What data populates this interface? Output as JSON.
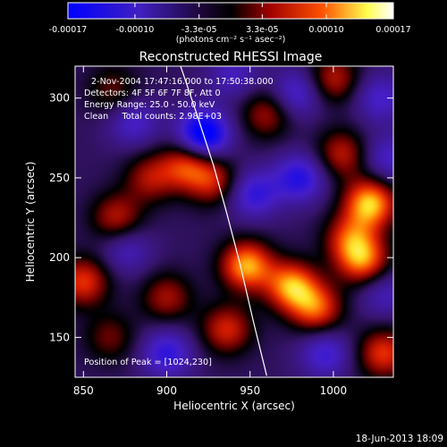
{
  "chart_data": {
    "type": "heatmap",
    "title": "Reconstructed RHESSI Image",
    "xlabel": "Heliocentric X (arcsec)",
    "ylabel": "Heliocentric Y (arcsec)",
    "xlim": [
      845,
      1036
    ],
    "ylim": [
      125,
      320
    ],
    "xticks": [
      850,
      900,
      950,
      1000
    ],
    "yticks": [
      150,
      200,
      250,
      300
    ],
    "x_tick_labels": [
      "850",
      "900",
      "950",
      "1000"
    ],
    "y_tick_labels": [
      "150",
      "200",
      "250",
      "300"
    ],
    "colorbar": {
      "range": [
        -0.00017,
        0.00017
      ],
      "ticks": [
        -0.00017,
        -0.0001,
        -3.3e-05,
        3.3e-05,
        0.0001,
        0.00017
      ],
      "tick_labels": [
        "-0.00017",
        "-0.00010",
        "-3.3e-05",
        "3.3e-05",
        "0.00010",
        "0.00017"
      ],
      "label": "(photons cm⁻² s⁻¹ asec⁻²)",
      "colors": [
        "#0000ff",
        "#3018a8",
        "#000000",
        "#b00000",
        "#ff5000",
        "#ffff60",
        "#ffffff"
      ]
    },
    "annotations": {
      "time": "2-Nov-2004 17:47:16.000 to 17:50:38.000",
      "detectors": "Detectors: 4F 5F 6F 7F 8F, Att 0",
      "energy": "Energy Range: 25.0 - 50.0 keV",
      "clean": "Clean     Total counts: 2.98E+03",
      "peak": "Position of Peak = [1024,230]"
    },
    "limb_curve": {
      "x": [
        908,
        918,
        928,
        936,
        944,
        952,
        960
      ],
      "y": [
        321,
        290,
        258,
        228,
        196,
        160,
        126
      ]
    },
    "sources": [
      {
        "x": 948,
        "y": 195,
        "value": 0.000155
      },
      {
        "x": 975,
        "y": 182,
        "value": 0.00015
      },
      {
        "x": 990,
        "y": 168,
        "value": 0.00012
      },
      {
        "x": 1022,
        "y": 234,
        "value": 0.000165
      },
      {
        "x": 1018,
        "y": 198,
        "value": 0.00013
      },
      {
        "x": 1010,
        "y": 212,
        "value": 0.0001
      },
      {
        "x": 1005,
        "y": 265,
        "value": 9e-05
      },
      {
        "x": 912,
        "y": 258,
        "value": 0.00011
      },
      {
        "x": 928,
        "y": 248,
        "value": 9e-05
      },
      {
        "x": 890,
        "y": 250,
        "value": 8e-05
      },
      {
        "x": 870,
        "y": 225,
        "value": 9e-05
      },
      {
        "x": 850,
        "y": 185,
        "value": 0.00011
      },
      {
        "x": 900,
        "y": 175,
        "value": 8e-05
      },
      {
        "x": 936,
        "y": 155,
        "value": 0.0001
      },
      {
        "x": 1030,
        "y": 140,
        "value": 0.00011
      },
      {
        "x": 960,
        "y": 290,
        "value": 8e-05
      },
      {
        "x": 1000,
        "y": 312,
        "value": 9e-05
      },
      {
        "x": 868,
        "y": 305,
        "value": 6e-05
      },
      {
        "x": 866,
        "y": 150,
        "value": 6e-05
      },
      {
        "x": 922,
        "y": 277,
        "value": -0.00016
      },
      {
        "x": 952,
        "y": 240,
        "value": -9e-05
      },
      {
        "x": 980,
        "y": 250,
        "value": -0.0001
      },
      {
        "x": 978,
        "y": 303,
        "value": -8e-05
      },
      {
        "x": 1028,
        "y": 300,
        "value": -7e-05
      },
      {
        "x": 880,
        "y": 285,
        "value": -7e-05
      },
      {
        "x": 900,
        "y": 140,
        "value": -9e-05
      },
      {
        "x": 995,
        "y": 140,
        "value": -8e-05
      },
      {
        "x": 876,
        "y": 205,
        "value": -6e-05
      },
      {
        "x": 1030,
        "y": 178,
        "value": -6e-05
      },
      {
        "x": 940,
        "y": 315,
        "value": -6e-05
      },
      {
        "x": 1033,
        "y": 262,
        "value": -7e-05
      }
    ]
  },
  "footer": {
    "date": "18-Jun-2013 18:09"
  }
}
